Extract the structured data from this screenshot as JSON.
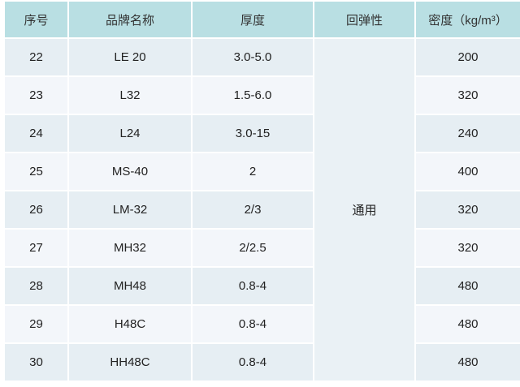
{
  "headers": [
    "序号",
    "品牌名称",
    "厚度",
    "回弹性",
    "密度（kg/m³）"
  ],
  "resilience_merged": "通用",
  "rows": [
    {
      "no": "22",
      "brand": "LE 20",
      "thickness": "3.0-5.0",
      "density": "200"
    },
    {
      "no": "23",
      "brand": "L32",
      "thickness": "1.5-6.0",
      "density": "320"
    },
    {
      "no": "24",
      "brand": "L24",
      "thickness": "3.0-15",
      "density": "240"
    },
    {
      "no": "25",
      "brand": "MS-40",
      "thickness": "2",
      "density": "400"
    },
    {
      "no": "26",
      "brand": "LM-32",
      "thickness": "2/3",
      "density": "320"
    },
    {
      "no": "27",
      "brand": "MH32",
      "thickness": "2/2.5",
      "density": "320"
    },
    {
      "no": "28",
      "brand": "MH48",
      "thickness": "0.8-4",
      "density": "480"
    },
    {
      "no": "29",
      "brand": "H48C",
      "thickness": "0.8-4",
      "density": "480"
    },
    {
      "no": "30",
      "brand": "HH48C",
      "thickness": "0.8-4",
      "density": "480"
    }
  ],
  "colors": {
    "header": "#b9dfe3",
    "row_odd": "#e6eef3",
    "row_even": "#f3f6fa"
  }
}
